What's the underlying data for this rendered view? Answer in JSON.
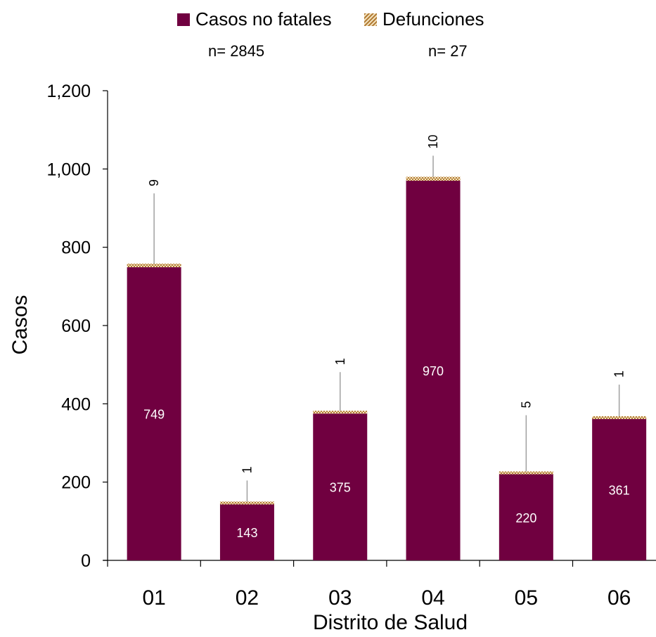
{
  "legend": {
    "series1_label": "Casos no fatales",
    "series2_label": "Defunciones",
    "series1_n": "n= 2845",
    "series2_n": "n= 27"
  },
  "chart_data": {
    "type": "bar",
    "stacked": true,
    "categories": [
      "01",
      "02",
      "03",
      "04",
      "05",
      "06"
    ],
    "series": [
      {
        "name": "Casos no fatales",
        "values": [
          749,
          143,
          375,
          970,
          220,
          361
        ],
        "color": "#700040"
      },
      {
        "name": "Defunciones",
        "values": [
          9,
          1,
          1,
          10,
          5,
          1
        ],
        "color": "#c8a060",
        "pattern": "hatch"
      }
    ],
    "xlabel": "Distrito de Salud",
    "ylabel": "Casos",
    "ylim": [
      0,
      1200
    ],
    "yticks": [
      0,
      200,
      400,
      600,
      800,
      1000,
      1200
    ],
    "ytick_labels": [
      "0",
      "200",
      "400",
      "600",
      "800",
      "1,000",
      "1,200"
    ],
    "grid": false,
    "legend_position": "top"
  }
}
